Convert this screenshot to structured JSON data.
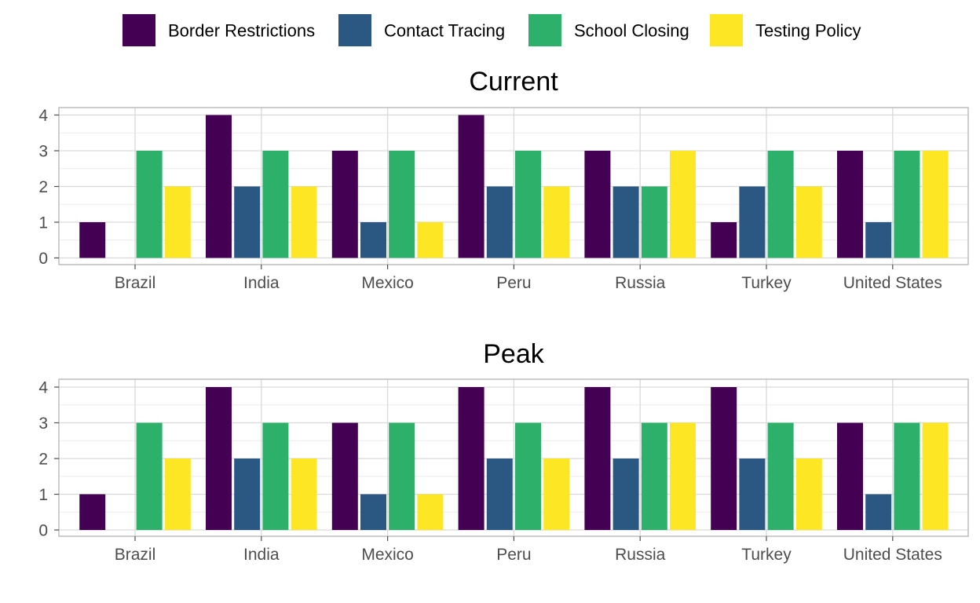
{
  "chart_data": {
    "type": "bar",
    "legend": {
      "position": "top",
      "entries": [
        {
          "label": "Border Restrictions",
          "color": "#440154"
        },
        {
          "label": "Contact Tracing",
          "color": "#2a5882"
        },
        {
          "label": "School Closing",
          "color": "#2db06a"
        },
        {
          "label": "Testing Policy",
          "color": "#fde725"
        }
      ]
    },
    "categories": [
      "Brazil",
      "India",
      "Mexico",
      "Peru",
      "Russia",
      "Turkey",
      "United States"
    ],
    "y_ticks": [
      "0",
      "1",
      "2",
      "3",
      "4"
    ],
    "ylim": [
      0,
      4
    ],
    "grid": true,
    "panels": [
      {
        "title": "Current",
        "series": [
          {
            "name": "Border Restrictions",
            "values": [
              1,
              4,
              3,
              4,
              3,
              1,
              3
            ]
          },
          {
            "name": "Contact Tracing",
            "values": [
              0,
              2,
              1,
              2,
              2,
              2,
              1
            ]
          },
          {
            "name": "School Closing",
            "values": [
              3,
              3,
              3,
              3,
              2,
              3,
              3
            ]
          },
          {
            "name": "Testing Policy",
            "values": [
              2,
              2,
              1,
              2,
              3,
              2,
              3
            ]
          }
        ]
      },
      {
        "title": "Peak",
        "series": [
          {
            "name": "Border Restrictions",
            "values": [
              1,
              4,
              3,
              4,
              4,
              4,
              3
            ]
          },
          {
            "name": "Contact Tracing",
            "values": [
              0,
              2,
              1,
              2,
              2,
              2,
              1
            ]
          },
          {
            "name": "School Closing",
            "values": [
              3,
              3,
              3,
              3,
              3,
              3,
              3
            ]
          },
          {
            "name": "Testing Policy",
            "values": [
              2,
              2,
              1,
              2,
              3,
              2,
              3
            ]
          }
        ]
      }
    ]
  }
}
